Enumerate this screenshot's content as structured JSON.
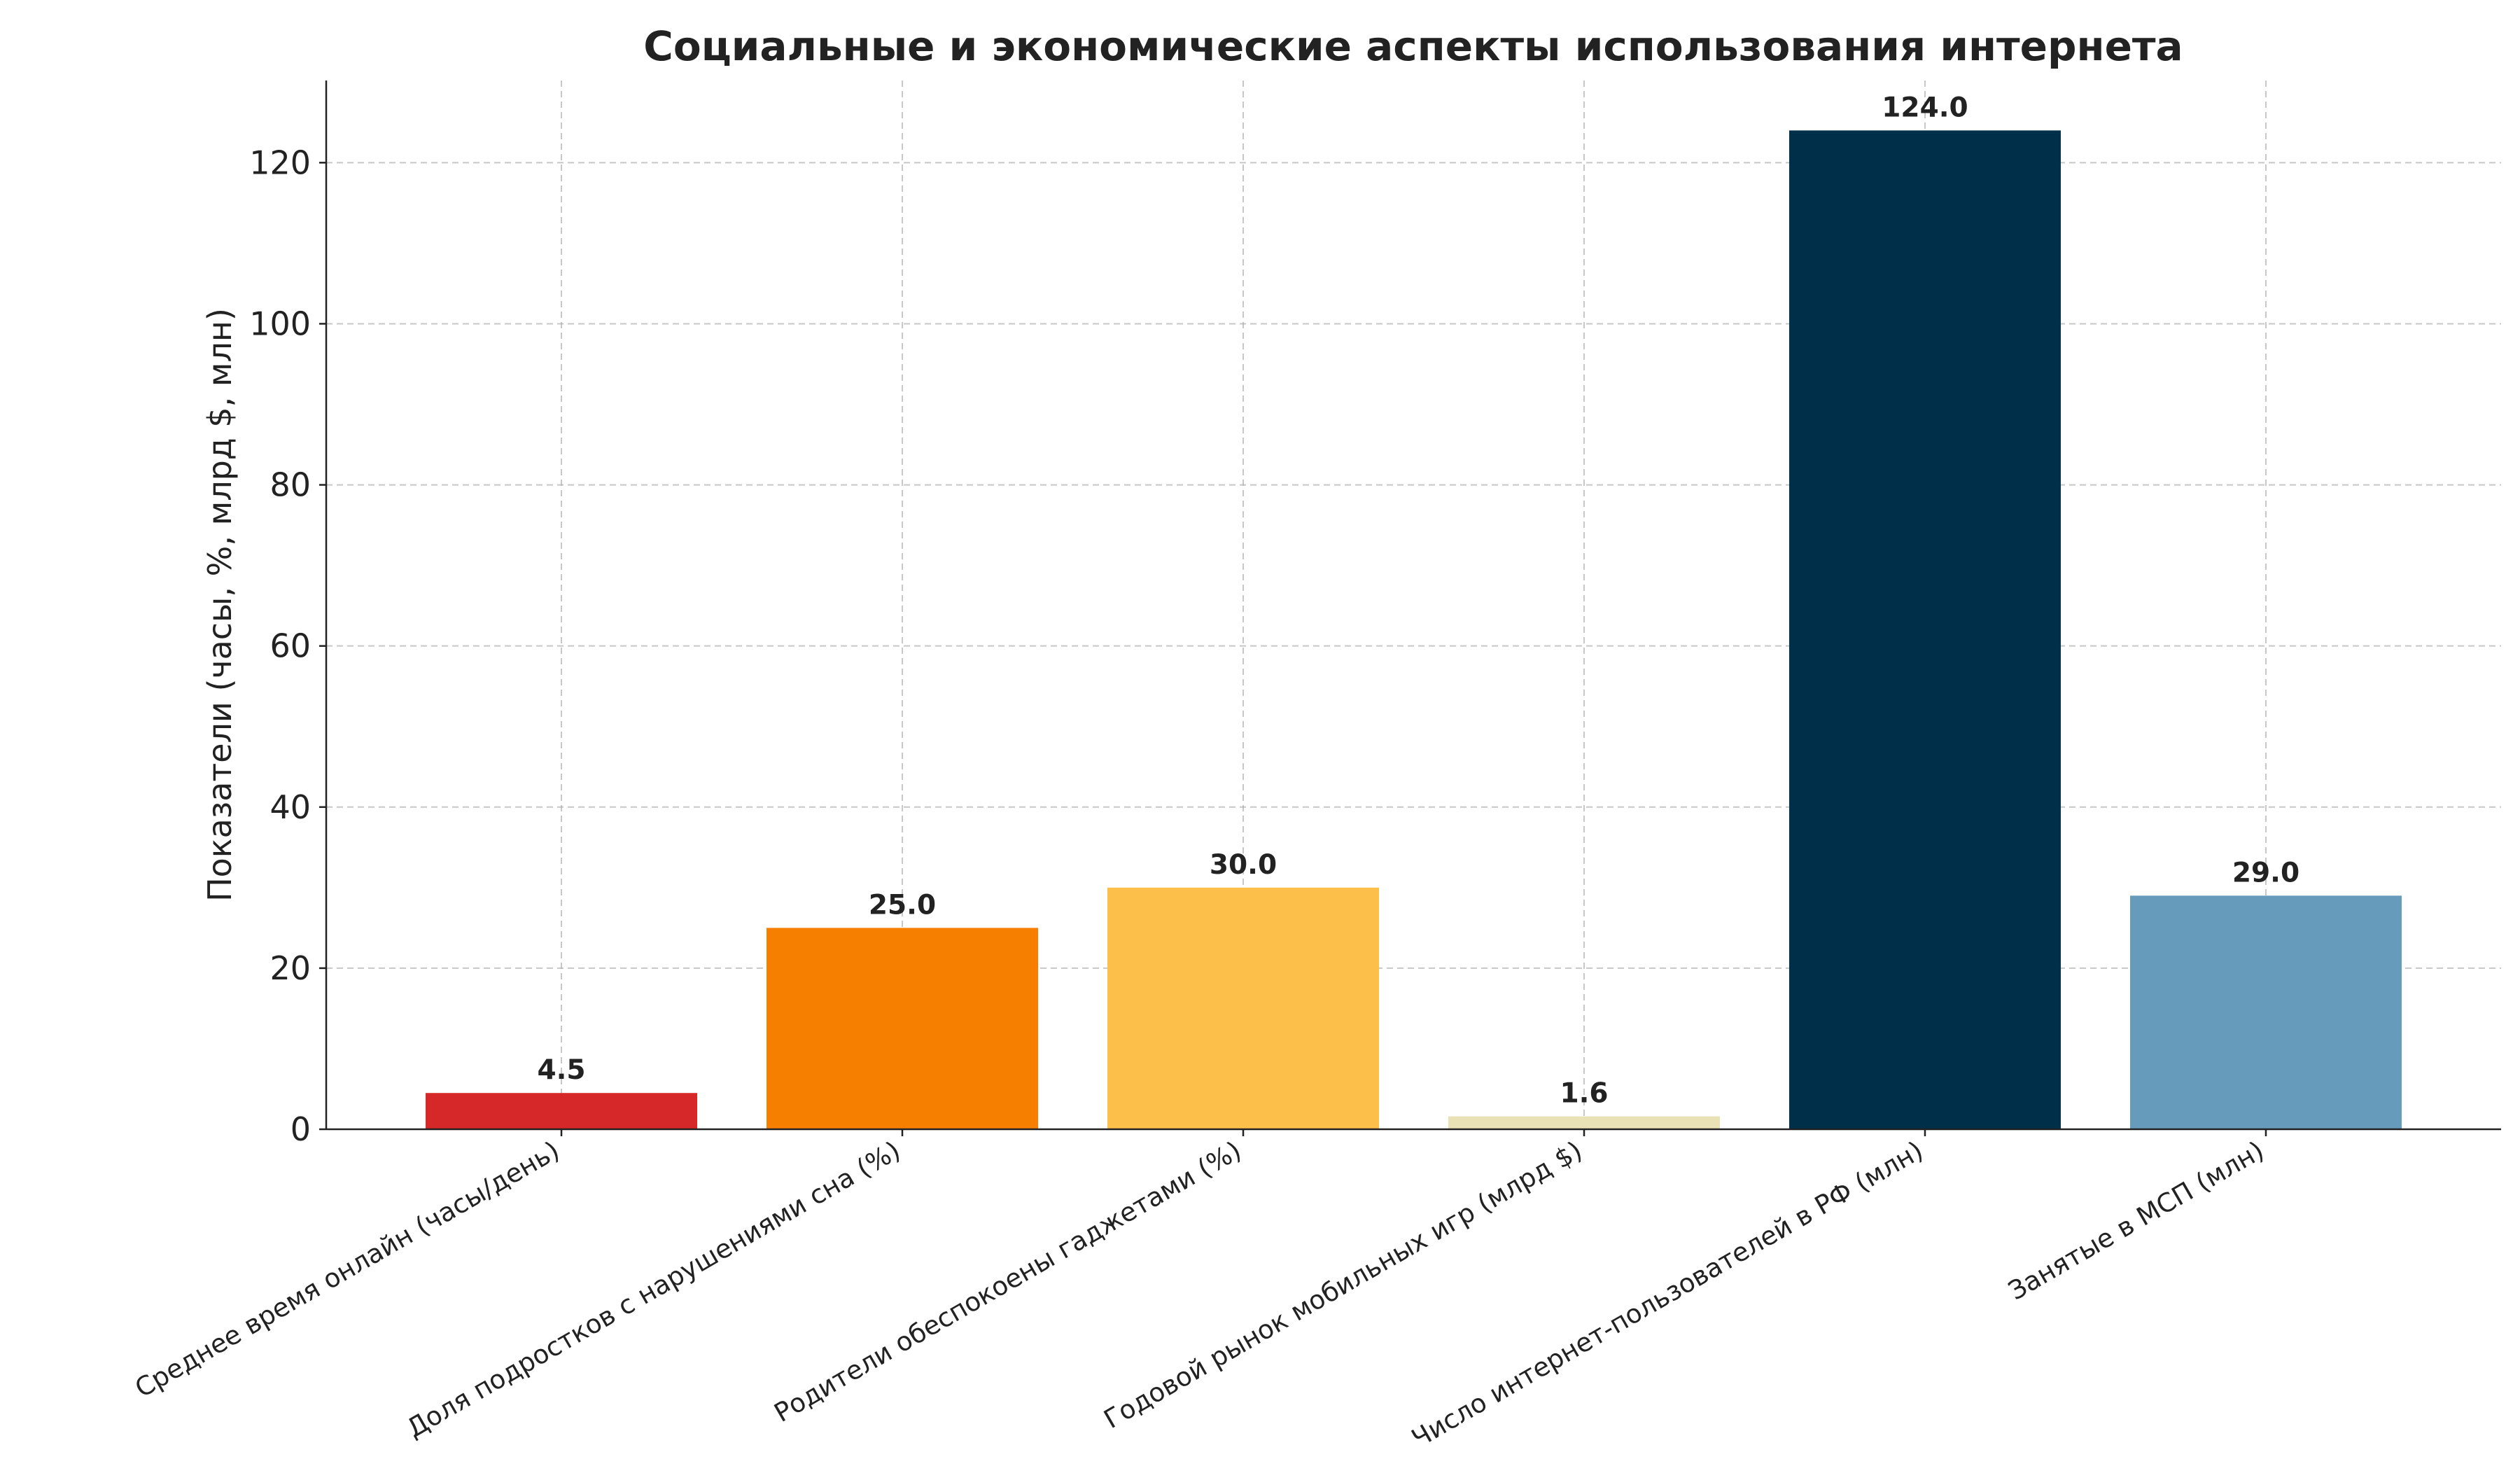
{
  "chart_data": {
    "type": "bar",
    "title": "Социальные и экономические аспекты использования интернета",
    "xlabel": "",
    "ylabel": "Показатели (часы, %, млрд $, млн)",
    "categories": [
      "Среднее время онлайн (часы/день)",
      "Доля подростков с нарушениями сна (%)",
      "Родители обеспокоены гаджетами (%)",
      "Годовой рынок мобильных игр (млрд $)",
      "Число интернет-пользователей в РФ (млн)",
      "Занятые в МСП (млн)"
    ],
    "values": [
      4.5,
      25.0,
      30.0,
      1.6,
      124.0,
      29.0
    ],
    "data_labels": [
      "4.5",
      "25.0",
      "30.0",
      "1.6",
      "124.0",
      "29.0"
    ],
    "colors": [
      "#d62828",
      "#f77f00",
      "#fcbf49",
      "#eae2b7",
      "#003049",
      "#669bbc"
    ],
    "ylim": [
      0,
      130.2
    ],
    "yticks": [
      0,
      20,
      40,
      60,
      80,
      100,
      120
    ],
    "ytick_labels": [
      "0",
      "20",
      "40",
      "60",
      "80",
      "100",
      "120"
    ],
    "grid": true,
    "grid_style": "dashed",
    "legend": "none"
  }
}
